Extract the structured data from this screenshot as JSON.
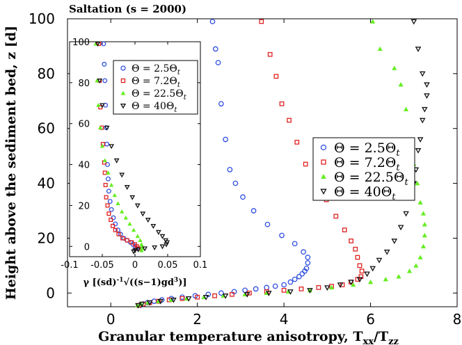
{
  "chart_data": [
    {
      "type": "scatter",
      "id": "main",
      "title": "Saltation (s = 2000)",
      "xlabel": "Granular temperature anisotropy, T",
      "xlabel_sub1": "xx",
      "xlabel_slash": "/T",
      "xlabel_sub2": "zz",
      "ylabel": "Height above the sediment bed, z [d]",
      "xlim": [
        -1,
        8
      ],
      "ylim": [
        -5,
        100
      ],
      "xticks": [
        0,
        2,
        4,
        6,
        8
      ],
      "yticks": [
        0,
        20,
        40,
        60,
        80,
        100
      ],
      "grid": false,
      "legend_position": "center-right",
      "series": [
        {
          "name": "Θ = 2.5Θ",
          "sub": "t",
          "marker": "circle",
          "color": "#2f4fe0",
          "x": [
            0.68,
            0.75,
            0.85,
            1.0,
            1.18,
            1.4,
            1.65,
            1.95,
            2.25,
            2.55,
            2.85,
            3.1,
            3.35,
            3.6,
            3.8,
            4.0,
            4.15,
            4.25,
            4.35,
            4.42,
            4.48,
            4.52,
            4.55,
            4.55,
            4.45,
            4.25,
            3.95,
            3.62,
            3.3,
            3.05,
            2.88,
            2.75,
            2.65,
            2.55,
            2.48,
            2.42,
            2.35
          ],
          "y": [
            -4.5,
            -4,
            -3.5,
            -3,
            -2.5,
            -2,
            -1.5,
            -1,
            -0.5,
            0,
            0.5,
            1,
            1.5,
            2,
            2.5,
            3,
            4,
            5,
            6,
            7,
            8,
            9,
            11,
            13,
            15,
            18,
            21,
            25,
            30,
            35,
            40,
            45,
            56,
            69,
            84,
            89,
            99
          ]
        },
        {
          "name": "Θ = 7.2Θ",
          "sub": "t",
          "marker": "square",
          "color": "#e02020",
          "x": [
            0.65,
            0.75,
            0.9,
            1.1,
            1.35,
            1.65,
            2.0,
            2.4,
            2.8,
            3.2,
            3.6,
            4.0,
            4.4,
            4.8,
            5.1,
            5.35,
            5.55,
            5.7,
            5.78,
            5.8,
            5.75,
            5.7,
            5.65,
            5.55,
            5.4,
            5.2,
            4.98,
            4.72,
            4.5,
            4.3,
            4.12,
            3.95,
            3.82,
            3.68,
            3.48
          ],
          "y": [
            -4.5,
            -4,
            -3.5,
            -3,
            -2.5,
            -2,
            -1.5,
            -1,
            -0.5,
            0,
            0.5,
            1,
            1.5,
            2,
            2.5,
            3,
            4,
            5,
            6,
            8,
            10,
            13,
            16,
            19,
            23,
            28,
            34,
            40,
            47,
            55,
            63,
            69,
            79,
            87,
            99
          ]
        },
        {
          "name": "Θ = 22.5Θ",
          "sub": "t",
          "marker": "triangle-up",
          "color": "#66ee22",
          "x": [
            0.62,
            0.7,
            0.85,
            1.1,
            1.4,
            1.75,
            2.15,
            2.6,
            3.1,
            3.6,
            4.1,
            4.6,
            5.1,
            5.6,
            6.0,
            6.35,
            6.65,
            6.9,
            7.05,
            7.15,
            7.22,
            7.25,
            7.25,
            7.22,
            7.15,
            7.08,
            7.0,
            6.92,
            6.82,
            6.7,
            6.55,
            6.22,
            6.05
          ],
          "y": [
            -4.5,
            -4,
            -3.5,
            -3,
            -2.5,
            -2,
            -1.5,
            -1,
            -0.5,
            0,
            0.5,
            1,
            2,
            3,
            4,
            5,
            6,
            8,
            10,
            13,
            17,
            21,
            25,
            29,
            33,
            40,
            47,
            56,
            67,
            76,
            82,
            89,
            99
          ]
        },
        {
          "name": "Θ = 40Θ",
          "sub": "t",
          "marker": "triangle-down",
          "color": "#111111",
          "x": [
            0.63,
            0.72,
            0.9,
            1.15,
            1.45,
            1.8,
            2.2,
            2.65,
            3.15,
            3.65,
            4.15,
            4.6,
            5.0,
            5.3,
            5.55,
            5.75,
            5.92,
            6.05,
            6.2,
            6.38,
            6.55,
            6.7,
            6.82,
            6.92,
            7.0,
            7.05,
            7.1,
            7.15,
            7.2,
            7.25,
            7.3,
            7.3,
            7.2,
            7.1,
            7.0
          ],
          "y": [
            -4.5,
            -4,
            -3.5,
            -3,
            -2.5,
            -2,
            -1.5,
            -1,
            -0.5,
            0,
            0.5,
            1,
            2,
            3,
            4,
            5,
            7,
            9,
            12,
            15,
            19,
            24,
            29,
            35,
            40,
            45,
            52,
            56,
            63,
            67,
            72,
            76,
            80,
            89,
            99
          ]
        }
      ]
    },
    {
      "type": "scatter",
      "id": "inset",
      "xlabel": "γ [(sd)",
      "xlabel_sup": "-1",
      "xlabel_rest": "√((s−1)gd",
      "xlabel_sup2": "3",
      "xlabel_close": ")]",
      "xlim": [
        -0.1,
        0.1
      ],
      "ylim": [
        -5,
        100
      ],
      "xticks": [
        "-0.1",
        "-0.05",
        "0",
        "0.05",
        "0.1"
      ],
      "xtick_values": [
        -0.1,
        -0.05,
        0,
        0.05,
        0.1
      ],
      "yticks": [
        0,
        20,
        40,
        60,
        80,
        100
      ],
      "grid": false,
      "legend_position": "top-right",
      "series": [
        {
          "name": "Θ = 2.5Θ",
          "sub": "t",
          "marker": "circle",
          "color": "#2f4fe0",
          "x": [
            -0.048,
            -0.047,
            -0.046,
            -0.045,
            -0.044,
            -0.043,
            -0.042,
            -0.041,
            -0.04,
            -0.038,
            -0.036,
            -0.033,
            -0.03,
            -0.026,
            -0.022,
            -0.017,
            -0.012,
            -0.007,
            -0.003,
            0.0,
            0.002
          ],
          "y": [
            99,
            89,
            81,
            69,
            58,
            50,
            40,
            33,
            27,
            22,
            18,
            14,
            11,
            8,
            6,
            4,
            3,
            2,
            1,
            0,
            -1
          ]
        },
        {
          "name": "Θ = 7.2Θ",
          "sub": "t",
          "marker": "square",
          "color": "#e02020",
          "x": [
            -0.055,
            -0.054,
            -0.053,
            -0.051,
            -0.049,
            -0.047,
            -0.046,
            -0.045,
            -0.044,
            -0.042,
            -0.04,
            -0.037,
            -0.034,
            -0.03,
            -0.025,
            -0.019,
            -0.012,
            -0.005,
            0.0,
            0.003,
            0.005
          ],
          "y": [
            99,
            81,
            68,
            58,
            50,
            41,
            36,
            30,
            24,
            20,
            16,
            13,
            10,
            8,
            6,
            4,
            3,
            2,
            1,
            0,
            -1
          ]
        },
        {
          "name": "Θ = 22.5Θ",
          "sub": "t",
          "marker": "triangle-up",
          "color": "#66ee22",
          "x": [
            -0.06,
            -0.058,
            -0.056,
            -0.053,
            -0.05,
            -0.046,
            -0.041,
            -0.036,
            -0.031,
            -0.026,
            -0.02,
            -0.014,
            -0.008,
            -0.002,
            0.004,
            0.008,
            0.01,
            0.011,
            0.011,
            0.01
          ],
          "y": [
            99,
            81,
            69,
            58,
            49,
            42,
            36,
            30,
            25,
            21,
            17,
            14,
            11,
            8,
            5,
            3,
            1,
            0,
            -1,
            -2
          ]
        },
        {
          "name": "Θ = 40Θ",
          "sub": "t",
          "marker": "triangle-down",
          "color": "#111111",
          "x": [
            -0.057,
            -0.054,
            -0.05,
            -0.043,
            -0.036,
            -0.028,
            -0.02,
            -0.012,
            -0.004,
            0.004,
            0.012,
            0.02,
            0.028,
            0.036,
            0.042,
            0.047,
            0.049,
            0.048,
            0.042,
            0.03,
            0.015,
            0.005,
            0.0,
            -0.002
          ],
          "y": [
            99,
            81,
            69,
            58,
            49,
            42,
            35,
            29,
            24,
            20,
            16,
            13,
            10,
            7,
            5,
            3,
            2,
            1,
            0,
            -0.5,
            -1,
            -1.5,
            -2,
            -2.5
          ]
        }
      ]
    }
  ]
}
